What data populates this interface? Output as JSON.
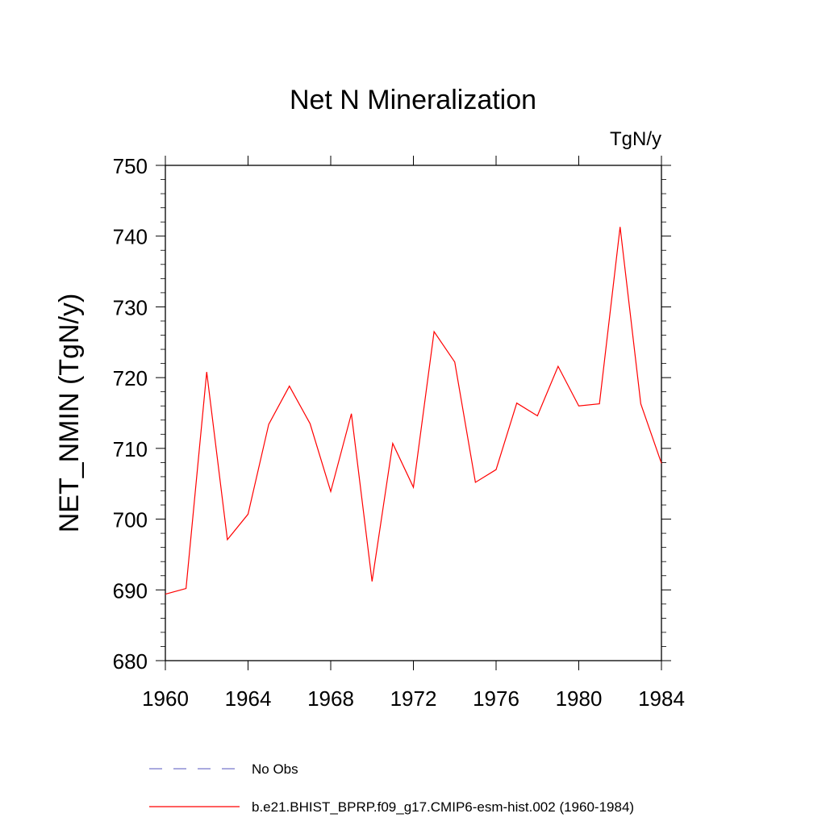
{
  "chart_data": {
    "type": "line",
    "title": "Net N Mineralization",
    "units_label": "TgN/y",
    "ylabel": "NET_NMIN  (TgN/y)",
    "xlabel": "",
    "xlim": [
      1960,
      1984
    ],
    "ylim": [
      680,
      750
    ],
    "x_ticks": [
      1960,
      1964,
      1968,
      1972,
      1976,
      1980,
      1984
    ],
    "y_ticks": [
      680,
      690,
      700,
      710,
      720,
      730,
      740,
      750
    ],
    "grid": false,
    "legend_position": "bottom",
    "series": [
      {
        "name": "b.e21.BHIST_BPRP.f09_g17.CMIP6-esm-hist.002 (1960-1984)",
        "color": "#ff0000",
        "style": "solid",
        "x": [
          1960,
          1961,
          1962,
          1963,
          1964,
          1965,
          1966,
          1967,
          1968,
          1969,
          1970,
          1971,
          1972,
          1973,
          1974,
          1975,
          1976,
          1977,
          1978,
          1979,
          1980,
          1981,
          1982,
          1983,
          1984
        ],
        "y": [
          689.4,
          690.2,
          720.8,
          697.1,
          700.7,
          713.4,
          718.8,
          713.5,
          703.9,
          714.9,
          691.2,
          710.7,
          704.5,
          726.5,
          722.2,
          705.2,
          707.0,
          716.4,
          714.6,
          721.6,
          716.0,
          716.3,
          741.3,
          716.3,
          707.9
        ]
      },
      {
        "name": "No Obs",
        "color": "#7777cc",
        "style": "dashed",
        "x": [],
        "y": []
      }
    ]
  }
}
